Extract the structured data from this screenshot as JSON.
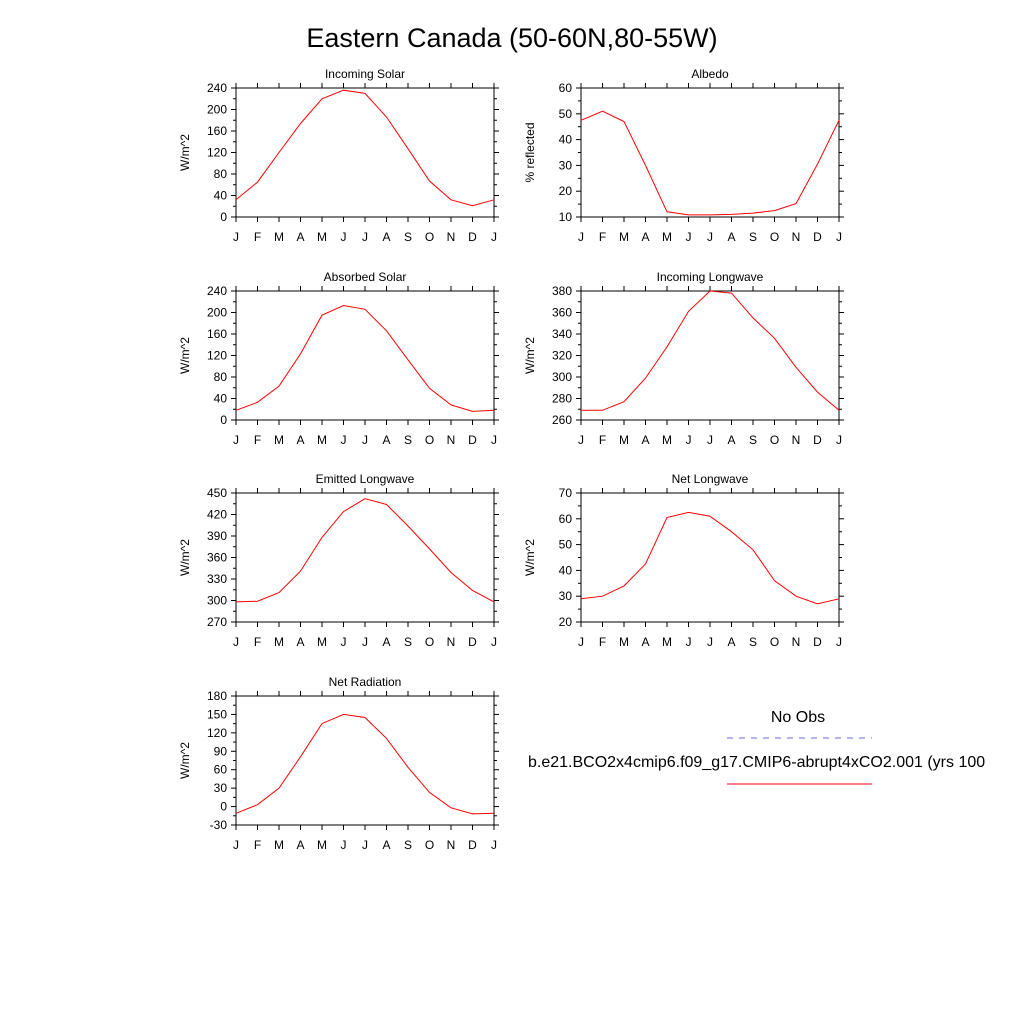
{
  "title": "Eastern Canada (50-60N,80-55W)",
  "colors": {
    "model": "#ff0000",
    "obs": "#6b6bd6"
  },
  "legend": {
    "obs_label": "No Obs",
    "model_label": "b.e21.BCO2x4cmip6.f09_g17.CMIP6-abrupt4xCO2.001 (yrs 100"
  },
  "chart_data": [
    {
      "type": "line",
      "title": "Incoming Solar",
      "ylabel": "W/m^2",
      "categories": [
        "J",
        "F",
        "M",
        "A",
        "M",
        "J",
        "J",
        "A",
        "S",
        "O",
        "N",
        "D",
        "J"
      ],
      "ylim": [
        0,
        240
      ],
      "yticks": [
        0,
        40,
        80,
        120,
        160,
        200,
        240
      ],
      "values": [
        32,
        65,
        120,
        174,
        220,
        236,
        230,
        186,
        127,
        67,
        32,
        21,
        32
      ]
    },
    {
      "type": "line",
      "title": "Albedo",
      "ylabel": "% reflected",
      "categories": [
        "J",
        "F",
        "M",
        "A",
        "M",
        "J",
        "J",
        "A",
        "S",
        "O",
        "N",
        "D",
        "J"
      ],
      "ylim": [
        10,
        60
      ],
      "yticks": [
        10,
        20,
        30,
        40,
        50,
        60
      ],
      "values": [
        47.5,
        51,
        47,
        30,
        12,
        10.8,
        10.8,
        11,
        11.5,
        12.5,
        15.2,
        30.5,
        47.5
      ]
    },
    {
      "type": "line",
      "title": "Absorbed Solar",
      "ylabel": "W/m^2",
      "categories": [
        "J",
        "F",
        "M",
        "A",
        "M",
        "J",
        "J",
        "A",
        "S",
        "O",
        "N",
        "D",
        "J"
      ],
      "ylim": [
        0,
        240
      ],
      "yticks": [
        0,
        40,
        80,
        120,
        160,
        200,
        240
      ],
      "values": [
        18,
        33,
        63,
        123,
        195,
        213,
        206,
        166,
        112,
        59,
        28,
        16,
        18
      ]
    },
    {
      "type": "line",
      "title": "Incoming Longwave",
      "ylabel": "W/m^2",
      "categories": [
        "J",
        "F",
        "M",
        "A",
        "M",
        "J",
        "J",
        "A",
        "S",
        "O",
        "N",
        "D",
        "J"
      ],
      "ylim": [
        260,
        380
      ],
      "yticks": [
        260,
        280,
        300,
        320,
        340,
        360,
        380
      ],
      "values": [
        269,
        269,
        277,
        299,
        328,
        361,
        380,
        378,
        355,
        336,
        309,
        286,
        269
      ]
    },
    {
      "type": "line",
      "title": "Emitted Longwave",
      "ylabel": "W/m^2",
      "categories": [
        "J",
        "F",
        "M",
        "A",
        "M",
        "J",
        "J",
        "A",
        "S",
        "O",
        "N",
        "D",
        "J"
      ],
      "ylim": [
        270,
        450
      ],
      "yticks": [
        270,
        300,
        330,
        360,
        390,
        420,
        450
      ],
      "values": [
        298,
        299,
        311,
        341,
        388,
        424,
        442,
        434,
        404,
        372,
        339,
        314,
        298
      ]
    },
    {
      "type": "line",
      "title": "Net Longwave",
      "ylabel": "W/m^2",
      "categories": [
        "J",
        "F",
        "M",
        "A",
        "M",
        "J",
        "J",
        "A",
        "S",
        "O",
        "N",
        "D",
        "J"
      ],
      "ylim": [
        20,
        70
      ],
      "yticks": [
        20,
        30,
        40,
        50,
        60,
        70
      ],
      "values": [
        29,
        30,
        34,
        42.5,
        60.5,
        62.5,
        61,
        55,
        48,
        36,
        30,
        27,
        29
      ]
    },
    {
      "type": "line",
      "title": "Net Radiation",
      "ylabel": "W/m^2",
      "categories": [
        "J",
        "F",
        "M",
        "A",
        "M",
        "J",
        "J",
        "A",
        "S",
        "O",
        "N",
        "D",
        "J"
      ],
      "ylim": [
        -30,
        180
      ],
      "yticks": [
        -30,
        0,
        30,
        60,
        90,
        120,
        150,
        180
      ],
      "values": [
        -11,
        3,
        30,
        81,
        135,
        150,
        145,
        111,
        64,
        23,
        -2,
        -12,
        -11
      ]
    }
  ]
}
